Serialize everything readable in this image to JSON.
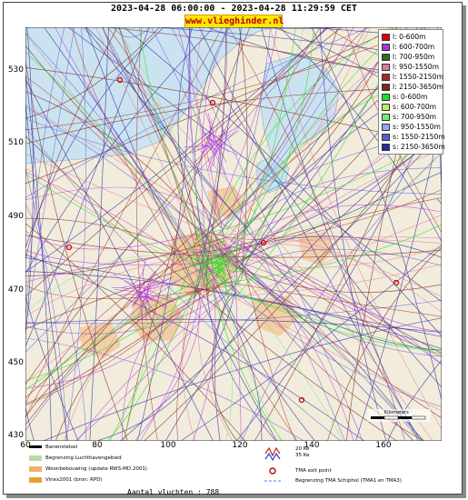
{
  "header": {
    "time_range": "2023-04-28 06:00:00 - 2023-04-28 11:29:59 CET",
    "site": "www.vlieghinder.nl"
  },
  "axes": {
    "x_ticks": [
      "60",
      "80",
      "100",
      "120",
      "140",
      "160"
    ],
    "y_ticks": [
      "530",
      "510",
      "490",
      "470",
      "450",
      "430"
    ],
    "x_range": [
      60,
      175
    ],
    "y_range": [
      430,
      542
    ]
  },
  "colors": {
    "sea": "#cbe3f0",
    "land": "#f2ecdc",
    "urban": "#f2c89a"
  },
  "legend": [
    {
      "label": "l: 0-600m",
      "color": "#e00000"
    },
    {
      "label": "l: 600-700m",
      "color": "#b030e0"
    },
    {
      "label": "l: 700-950m",
      "color": "#2e6e22"
    },
    {
      "label": "l: 950-1550m",
      "color": "#e07a8e"
    },
    {
      "label": "l: 1550-2150m",
      "color": "#a02a2a"
    },
    {
      "label": "l: 2150-3650m",
      "color": "#7a2a1a"
    },
    {
      "label": "s: 0-600m",
      "color": "#20e020"
    },
    {
      "label": "s: 600-700m",
      "color": "#b8f060"
    },
    {
      "label": "s: 700-950m",
      "color": "#70f070"
    },
    {
      "label": "s: 950-1550m",
      "color": "#a0a0f0"
    },
    {
      "label": "s: 1550-2150m",
      "color": "#5a5ad8"
    },
    {
      "label": "s: 2150-3650m",
      "color": "#2a2aa0"
    }
  ],
  "scale_bar": {
    "label": "Kilometers"
  },
  "bottom_legend": [
    {
      "label": "Banenstelsel",
      "color": "#000000"
    },
    {
      "label": "Begrenzing Luchthavengebied",
      "color": "#b8dca8"
    },
    {
      "label": "Woonbebouwing (update RWS-MD 2001)",
      "color": "#f0b070"
    },
    {
      "label": "Vinex2001 (bron: RPD)",
      "color": "#e8a030"
    },
    {
      "label": "20 Ke",
      "color": "#d02020"
    },
    {
      "label": "35 Ke",
      "color": "#2040d0"
    },
    {
      "label": "TMA exit point",
      "color": "#c00000"
    },
    {
      "label": "Begrenzing TMA Schiphol  (TMA1 en TMA3)",
      "color": "#60a0ff"
    }
  ],
  "footer": {
    "count": "Aantal vluchten : 788"
  }
}
